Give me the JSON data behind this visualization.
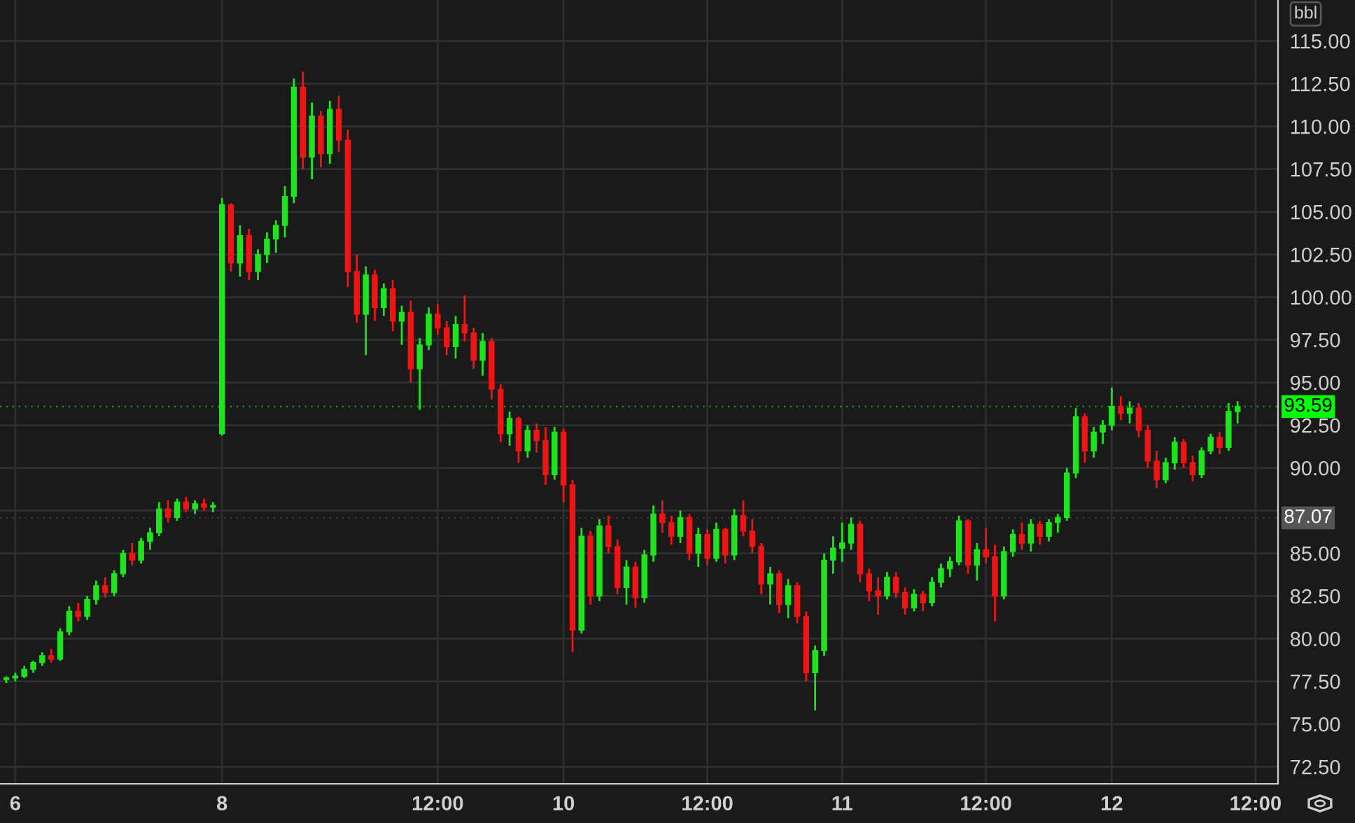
{
  "chart_data": {
    "type": "candlestick",
    "categories": [
      null,
      "6",
      null,
      null,
      null,
      null,
      null,
      null,
      null,
      null,
      null,
      null,
      null,
      null,
      null,
      null,
      null,
      null,
      null,
      null,
      null,
      null,
      null,
      null,
      "8",
      null,
      null,
      null,
      null,
      null,
      null,
      null,
      null,
      null,
      null,
      null,
      null,
      null,
      null,
      null,
      null,
      null,
      null,
      null,
      null,
      null,
      null,
      null,
      "12:00",
      null,
      null,
      null,
      null,
      null,
      null,
      null,
      null,
      null,
      null,
      null,
      null,
      null,
      "10",
      null,
      null,
      null,
      null,
      null,
      null,
      null,
      null,
      null,
      null,
      null,
      null,
      null,
      null,
      null,
      "12:00",
      null,
      null,
      null,
      null,
      null,
      null,
      null,
      null,
      null,
      null,
      null,
      null,
      null,
      null,
      "11",
      null,
      null,
      null,
      null,
      null,
      null,
      null,
      null,
      null,
      null,
      null,
      null,
      null,
      null,
      null,
      "12:00",
      null,
      null,
      null,
      null,
      null,
      null,
      null,
      null,
      null,
      null,
      null,
      null,
      null,
      "12",
      null,
      null,
      null,
      null,
      null,
      null,
      null,
      null,
      null,
      null,
      null,
      null,
      null,
      null,
      null,
      "12:00"
    ],
    "ohlc": [
      [
        77.6,
        77.8,
        77.4,
        77.7
      ],
      [
        77.7,
        78.0,
        77.5,
        77.8
      ],
      [
        77.8,
        78.4,
        77.7,
        78.2
      ],
      [
        78.2,
        78.7,
        78.0,
        78.6
      ],
      [
        78.6,
        79.2,
        78.4,
        79.0
      ],
      [
        79.0,
        79.4,
        78.6,
        78.8
      ],
      [
        78.8,
        80.6,
        78.7,
        80.4
      ],
      [
        80.4,
        81.9,
        80.2,
        81.6
      ],
      [
        81.6,
        82.1,
        81.0,
        81.3
      ],
      [
        81.3,
        82.5,
        81.1,
        82.3
      ],
      [
        82.3,
        83.4,
        82.0,
        83.1
      ],
      [
        83.1,
        83.6,
        82.4,
        82.7
      ],
      [
        82.7,
        84.0,
        82.5,
        83.8
      ],
      [
        83.8,
        85.2,
        83.6,
        85.0
      ],
      [
        85.0,
        85.6,
        84.3,
        84.6
      ],
      [
        84.6,
        85.9,
        84.4,
        85.7
      ],
      [
        85.7,
        86.5,
        85.2,
        86.2
      ],
      [
        86.2,
        88.0,
        86.0,
        87.6
      ],
      [
        87.6,
        88.1,
        86.8,
        87.1
      ],
      [
        87.1,
        88.2,
        86.9,
        88.0
      ],
      [
        88.0,
        88.3,
        87.4,
        87.6
      ],
      [
        87.6,
        88.1,
        87.3,
        87.9
      ],
      [
        87.9,
        88.2,
        87.5,
        87.7
      ],
      [
        87.7,
        88.0,
        87.4,
        87.8
      ],
      [
        92.0,
        105.8,
        91.9,
        105.4
      ],
      [
        105.4,
        105.5,
        101.5,
        102.0
      ],
      [
        102.0,
        104.2,
        101.2,
        103.6
      ],
      [
        103.6,
        104.0,
        101.0,
        101.5
      ],
      [
        101.5,
        102.8,
        101.0,
        102.5
      ],
      [
        102.5,
        103.8,
        102.0,
        103.4
      ],
      [
        103.4,
        104.5,
        102.6,
        104.2
      ],
      [
        104.2,
        106.5,
        103.5,
        105.9
      ],
      [
        105.9,
        112.8,
        105.5,
        112.3
      ],
      [
        112.3,
        113.2,
        107.5,
        108.2
      ],
      [
        108.2,
        111.4,
        106.9,
        110.6
      ],
      [
        110.6,
        110.9,
        107.6,
        108.4
      ],
      [
        108.4,
        111.5,
        107.8,
        111.0
      ],
      [
        111.0,
        111.8,
        108.5,
        109.2
      ],
      [
        109.2,
        109.8,
        100.6,
        101.5
      ],
      [
        101.5,
        102.5,
        98.5,
        99.0
      ],
      [
        99.0,
        101.8,
        96.6,
        101.3
      ],
      [
        101.3,
        101.6,
        98.6,
        99.4
      ],
      [
        99.4,
        100.8,
        98.9,
        100.5
      ],
      [
        100.5,
        101.0,
        98.0,
        98.6
      ],
      [
        98.6,
        99.5,
        97.2,
        99.1
      ],
      [
        99.1,
        99.8,
        95.0,
        95.8
      ],
      [
        95.8,
        97.6,
        93.4,
        97.2
      ],
      [
        97.2,
        99.4,
        96.9,
        99.0
      ],
      [
        99.0,
        99.6,
        97.8,
        98.2
      ],
      [
        98.2,
        98.6,
        96.6,
        97.1
      ],
      [
        97.1,
        98.9,
        96.4,
        98.4
      ],
      [
        98.4,
        100.1,
        97.4,
        97.9
      ],
      [
        97.9,
        98.2,
        95.8,
        96.3
      ],
      [
        96.3,
        97.9,
        95.4,
        97.4
      ],
      [
        97.4,
        97.6,
        94.0,
        94.6
      ],
      [
        94.6,
        94.9,
        91.5,
        92.0
      ],
      [
        92.0,
        93.3,
        91.3,
        92.9
      ],
      [
        92.9,
        93.0,
        90.3,
        91.0
      ],
      [
        91.0,
        92.5,
        90.6,
        92.2
      ],
      [
        92.2,
        92.6,
        90.9,
        91.6
      ],
      [
        91.6,
        92.4,
        89.0,
        89.6
      ],
      [
        89.6,
        92.4,
        89.3,
        92.1
      ],
      [
        92.1,
        92.3,
        88.0,
        89.0
      ],
      [
        89.0,
        89.3,
        79.2,
        80.5
      ],
      [
        80.5,
        86.5,
        80.3,
        86.0
      ],
      [
        86.0,
        86.3,
        82.0,
        82.5
      ],
      [
        82.5,
        87.0,
        82.2,
        86.6
      ],
      [
        86.6,
        87.2,
        85.0,
        85.4
      ],
      [
        85.4,
        85.8,
        82.6,
        83.0
      ],
      [
        83.0,
        84.6,
        82.0,
        84.2
      ],
      [
        84.2,
        84.5,
        81.8,
        82.4
      ],
      [
        82.4,
        85.2,
        82.1,
        84.9
      ],
      [
        84.9,
        87.8,
        84.5,
        87.3
      ],
      [
        87.3,
        88.1,
        86.2,
        86.8
      ],
      [
        86.8,
        87.2,
        85.5,
        86.0
      ],
      [
        86.0,
        87.5,
        85.6,
        87.1
      ],
      [
        87.1,
        87.3,
        84.6,
        85.0
      ],
      [
        85.0,
        86.5,
        84.2,
        86.1
      ],
      [
        86.1,
        86.4,
        84.3,
        84.7
      ],
      [
        84.7,
        86.8,
        84.5,
        86.4
      ],
      [
        86.4,
        86.5,
        84.4,
        84.9
      ],
      [
        84.9,
        87.6,
        84.6,
        87.2
      ],
      [
        87.2,
        88.1,
        86.0,
        86.3
      ],
      [
        86.3,
        87.0,
        85.0,
        85.4
      ],
      [
        85.4,
        85.6,
        82.6,
        83.2
      ],
      [
        83.2,
        84.2,
        82.0,
        83.8
      ],
      [
        83.8,
        84.0,
        81.5,
        82.0
      ],
      [
        82.0,
        83.5,
        81.2,
        83.1
      ],
      [
        83.1,
        83.3,
        80.9,
        81.3
      ],
      [
        81.3,
        81.6,
        77.5,
        78.0
      ],
      [
        78.0,
        79.6,
        75.8,
        79.3
      ],
      [
        79.3,
        85.0,
        79.0,
        84.6
      ],
      [
        84.6,
        86.0,
        83.8,
        85.3
      ],
      [
        85.3,
        86.8,
        84.5,
        85.6
      ],
      [
        85.6,
        87.1,
        85.2,
        86.7
      ],
      [
        86.7,
        86.9,
        83.3,
        83.8
      ],
      [
        83.8,
        84.1,
        82.2,
        82.8
      ],
      [
        82.8,
        83.6,
        81.4,
        82.5
      ],
      [
        82.5,
        83.9,
        82.3,
        83.6
      ],
      [
        83.6,
        83.9,
        82.4,
        82.7
      ],
      [
        82.7,
        83.0,
        81.4,
        81.8
      ],
      [
        81.8,
        82.9,
        81.6,
        82.6
      ],
      [
        82.6,
        82.8,
        81.6,
        82.1
      ],
      [
        82.1,
        83.6,
        81.9,
        83.3
      ],
      [
        83.3,
        84.4,
        83.0,
        84.1
      ],
      [
        84.1,
        84.8,
        83.6,
        84.5
      ],
      [
        84.5,
        87.2,
        84.3,
        86.9
      ],
      [
        86.9,
        87.0,
        83.8,
        84.3
      ],
      [
        84.3,
        85.6,
        83.4,
        85.2
      ],
      [
        85.2,
        86.5,
        84.4,
        84.8
      ],
      [
        84.8,
        85.5,
        81.0,
        82.5
      ],
      [
        82.5,
        85.4,
        82.3,
        85.1
      ],
      [
        85.1,
        86.4,
        84.8,
        86.1
      ],
      [
        86.1,
        86.8,
        85.2,
        85.6
      ],
      [
        85.6,
        87.0,
        85.1,
        86.7
      ],
      [
        86.7,
        86.9,
        85.5,
        86.0
      ],
      [
        86.0,
        87.0,
        85.7,
        86.8
      ],
      [
        86.8,
        87.3,
        86.2,
        87.1
      ],
      [
        87.1,
        90.0,
        86.9,
        89.7
      ],
      [
        89.7,
        93.5,
        89.4,
        93.0
      ],
      [
        93.0,
        93.2,
        90.3,
        91.0
      ],
      [
        91.0,
        92.4,
        90.6,
        92.1
      ],
      [
        92.1,
        92.8,
        91.4,
        92.5
      ],
      [
        92.5,
        94.7,
        92.2,
        93.6
      ],
      [
        93.6,
        94.2,
        92.8,
        93.2
      ],
      [
        93.2,
        93.9,
        92.6,
        93.5
      ],
      [
        93.5,
        93.8,
        91.8,
        92.2
      ],
      [
        92.2,
        92.5,
        90.0,
        90.4
      ],
      [
        90.4,
        91.0,
        88.8,
        89.3
      ],
      [
        89.3,
        90.6,
        89.1,
        90.3
      ],
      [
        90.3,
        91.8,
        89.9,
        91.5
      ],
      [
        91.5,
        91.7,
        90.0,
        90.3
      ],
      [
        90.3,
        90.7,
        89.2,
        89.6
      ],
      [
        89.6,
        91.2,
        89.4,
        91.0
      ],
      [
        91.0,
        92.0,
        90.8,
        91.8
      ],
      [
        91.8,
        92.1,
        90.8,
        91.2
      ],
      [
        91.2,
        93.8,
        91.0,
        93.3
      ],
      [
        93.3,
        93.9,
        92.6,
        93.59
      ],
      null,
      null
    ],
    "ylim": [
      71.5,
      117.4
    ],
    "yticks": [
      {
        "value": 72.5,
        "label": "72.50"
      },
      {
        "value": 75,
        "label": "75.00"
      },
      {
        "value": 77.5,
        "label": "77.50"
      },
      {
        "value": 80,
        "label": "80.00"
      },
      {
        "value": 82.5,
        "label": "82.50"
      },
      {
        "value": 85,
        "label": "85.00"
      },
      {
        "value": 87.5,
        "label": null
      },
      {
        "value": 90,
        "label": "90.00"
      },
      {
        "value": 92.5,
        "label": "92.50"
      },
      {
        "value": 95,
        "label": "95.00"
      },
      {
        "value": 97.5,
        "label": "97.50"
      },
      {
        "value": 100,
        "label": "100.00"
      },
      {
        "value": 102.5,
        "label": "102.50"
      },
      {
        "value": 105,
        "label": "105.00"
      },
      {
        "value": 107.5,
        "label": "107.50"
      },
      {
        "value": 110,
        "label": "110.00"
      },
      {
        "value": 112.5,
        "label": "112.50"
      },
      {
        "value": 115,
        "label": "115.00"
      }
    ],
    "ref_lines": [
      {
        "axis": "y",
        "value": 93.59,
        "label": "93.59",
        "color": "#00ff00"
      },
      {
        "axis": "y",
        "value": 87.07,
        "label": "87.07",
        "color": "#555555"
      }
    ],
    "annotations": [
      "bbl"
    ],
    "grid": true
  }
}
